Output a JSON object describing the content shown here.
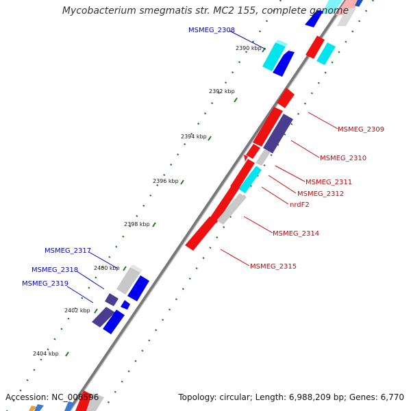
{
  "title": "Mycobacterium smegmatis str. MC2 155, complete genome",
  "footer": {
    "accession": "Accession: NC_008596",
    "summary": "Topology: circular; Length: 6,988,209 bp; Genes: 6,770"
  },
  "colors": {
    "forward_label": "#0000cc",
    "reverse_label": "#cc0000",
    "backbone": "#777777",
    "tick": "#1a7a1a",
    "red": "#ee1111",
    "blue": "#0000ee",
    "cyan": "#00e5ee",
    "gray": "#c8c8c8",
    "purple": "#4a3d8f"
  },
  "ticks": [
    {
      "label": "2390 kbp"
    },
    {
      "label": "2392 kbp"
    },
    {
      "label": "2394 kbp"
    },
    {
      "label": "2396 kbp"
    },
    {
      "label": "2398 kbp"
    },
    {
      "label": "2400 kbp"
    },
    {
      "label": "2402 kbp"
    },
    {
      "label": "2404 kbp"
    }
  ],
  "gene_labels": [
    {
      "text": "MSMEG_2308",
      "strand": "forward"
    },
    {
      "text": "MSMEG_2309",
      "strand": "reverse"
    },
    {
      "text": "MSMEG_2310",
      "strand": "reverse"
    },
    {
      "text": "MSMEG_2311",
      "strand": "reverse"
    },
    {
      "text": "MSMEG_2312",
      "strand": "reverse"
    },
    {
      "text": "nrdF2",
      "strand": "reverse"
    },
    {
      "text": "MSMEG_2314",
      "strand": "reverse"
    },
    {
      "text": "MSMEG_2315",
      "strand": "reverse"
    },
    {
      "text": "MSMEG_2317",
      "strand": "forward"
    },
    {
      "text": "MSMEG_2318",
      "strand": "forward"
    },
    {
      "text": "MSMEG_2319",
      "strand": "forward"
    }
  ]
}
